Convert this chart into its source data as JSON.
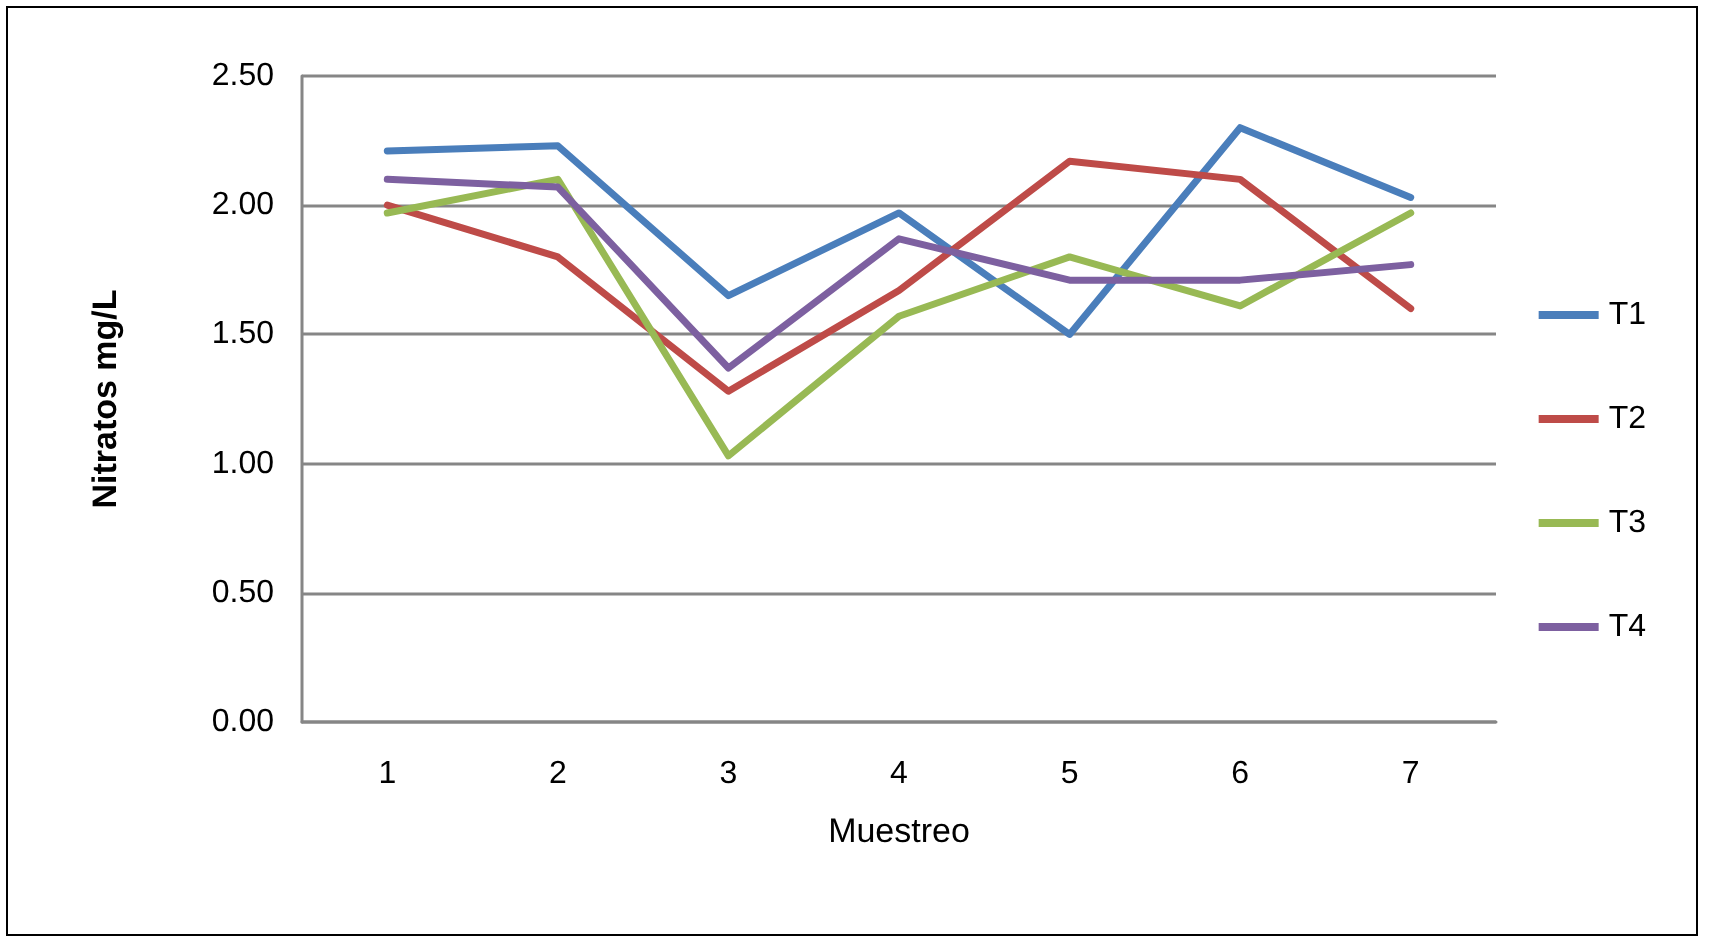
{
  "chart_data": {
    "type": "line",
    "xlabel": "Muestreo",
    "ylabel": "Nitratos mg/L",
    "categories": [
      "1",
      "2",
      "3",
      "4",
      "5",
      "6",
      "7"
    ],
    "series": [
      {
        "name": "T1",
        "color": "#4a7ebb",
        "values": [
          2.21,
          2.23,
          1.65,
          1.97,
          1.5,
          2.3,
          2.03
        ]
      },
      {
        "name": "T2",
        "color": "#be4b48",
        "values": [
          2.0,
          1.8,
          1.28,
          1.67,
          2.17,
          2.1,
          1.6
        ]
      },
      {
        "name": "T3",
        "color": "#98b954",
        "values": [
          1.97,
          2.1,
          1.03,
          1.57,
          1.8,
          1.61,
          1.97
        ]
      },
      {
        "name": "T4",
        "color": "#7d60a0",
        "values": [
          2.1,
          2.07,
          1.37,
          1.87,
          1.71,
          1.71,
          1.77
        ]
      }
    ],
    "ylim": [
      0,
      2.5
    ],
    "yticks": [
      {
        "value": 0,
        "label": "0.00"
      },
      {
        "value": 0.5,
        "label": "0.50"
      },
      {
        "value": 1,
        "label": "1.00"
      },
      {
        "value": 1.5,
        "label": "1.50"
      },
      {
        "value": 2,
        "label": "2.00"
      },
      {
        "value": 2.5,
        "label": "2.50"
      }
    ],
    "grid": "y",
    "legend": "right",
    "marker": "none",
    "line_style": "solid"
  }
}
